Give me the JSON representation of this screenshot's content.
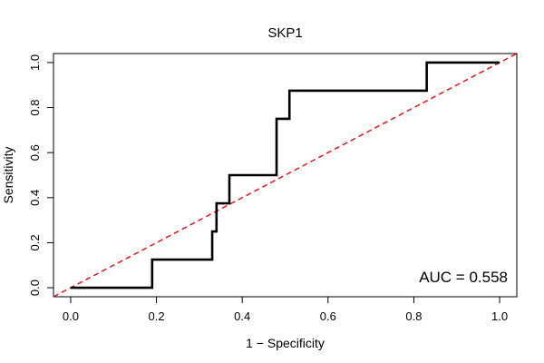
{
  "chart_data": {
    "type": "line",
    "title": "SKP1",
    "xlabel": "1 − Specificity",
    "ylabel": "Sensitivity",
    "xlim": [
      -0.04,
      1.04
    ],
    "ylim": [
      -0.04,
      1.04
    ],
    "x_ticks": [
      0.0,
      0.2,
      0.4,
      0.6,
      0.8,
      1.0
    ],
    "x_tick_labels": [
      "0.0",
      "0.2",
      "0.4",
      "0.6",
      "0.8",
      "1.0"
    ],
    "y_ticks": [
      0.0,
      0.2,
      0.4,
      0.6,
      0.8,
      1.0
    ],
    "y_tick_labels": [
      "0.0",
      "0.2",
      "0.4",
      "0.6",
      "0.8",
      "1.0"
    ],
    "grid": false,
    "annotation": "AUC = 0.558",
    "series": [
      {
        "color": "#000000",
        "style": "solid",
        "x": [
          0.0,
          0.19,
          0.19,
          0.33,
          0.33,
          0.34,
          0.34,
          0.355,
          0.355,
          0.37,
          0.37,
          0.48,
          0.48,
          0.51,
          0.51,
          0.83,
          0.83,
          1.0
        ],
        "y": [
          0.0,
          0.0,
          0.125,
          0.125,
          0.25,
          0.25,
          0.375,
          0.375,
          0.375,
          0.375,
          0.5,
          0.5,
          0.75,
          0.75,
          0.875,
          0.875,
          1.0,
          1.0
        ]
      },
      {
        "color": "#e41a1c",
        "style": "dashed",
        "x": [
          -0.04,
          1.04
        ],
        "y": [
          -0.04,
          1.04
        ]
      }
    ]
  }
}
